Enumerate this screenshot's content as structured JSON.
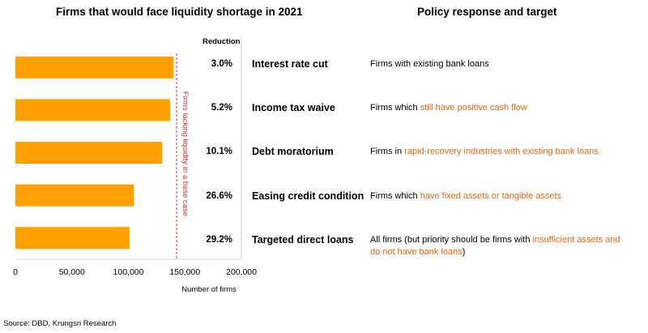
{
  "left_title": "Firms that would face liquidity shortage in 2021",
  "right_title": "Policy response and target",
  "reduction_header": "Reduction",
  "source": "Source: DBD, Krungsri Research",
  "chart_data": {
    "type": "bar",
    "orientation": "horizontal",
    "values": [
      140000,
      137000,
      130000,
      105000,
      101000
    ],
    "xlabel": "Number of firms",
    "xlim": [
      0,
      200000
    ],
    "xticks": [
      0,
      50000,
      100000,
      150000,
      200000
    ],
    "xtick_labels": [
      "0",
      "50,000",
      "100,000",
      "150,000",
      "200,000"
    ],
    "bar_color": "#ffa000",
    "reference_line": {
      "value": 142000,
      "label": "Firms lacking liquidity in a base case",
      "color": "#c0392b"
    }
  },
  "rows": [
    {
      "reduction": "3.0%",
      "policy": "Interest rate cut",
      "target": [
        {
          "text": "Firms with existing bank loans",
          "hl": false
        }
      ]
    },
    {
      "reduction": "5.2%",
      "policy": "Income tax waive",
      "target": [
        {
          "text": "Firms which ",
          "hl": false
        },
        {
          "text": "still have positive cash flow",
          "hl": true
        }
      ]
    },
    {
      "reduction": "10.1%",
      "policy": "Debt moratorium",
      "target": [
        {
          "text": "Firms in ",
          "hl": false
        },
        {
          "text": "rapid-recovery industries with existing bank loans",
          "hl": true
        }
      ]
    },
    {
      "reduction": "26.6%",
      "policy": "Easing credit condition",
      "target": [
        {
          "text": "Firms which ",
          "hl": false
        },
        {
          "text": "have fixed assets or tangible assets",
          "hl": true
        }
      ]
    },
    {
      "reduction": "29.2%",
      "policy": "Targeted direct loans",
      "target": [
        {
          "text": "All firms (but priority should be firms with ",
          "hl": false
        },
        {
          "text": "insufficient assets and do not have bank loans",
          "hl": true
        },
        {
          "text": ")",
          "hl": false
        }
      ]
    }
  ]
}
